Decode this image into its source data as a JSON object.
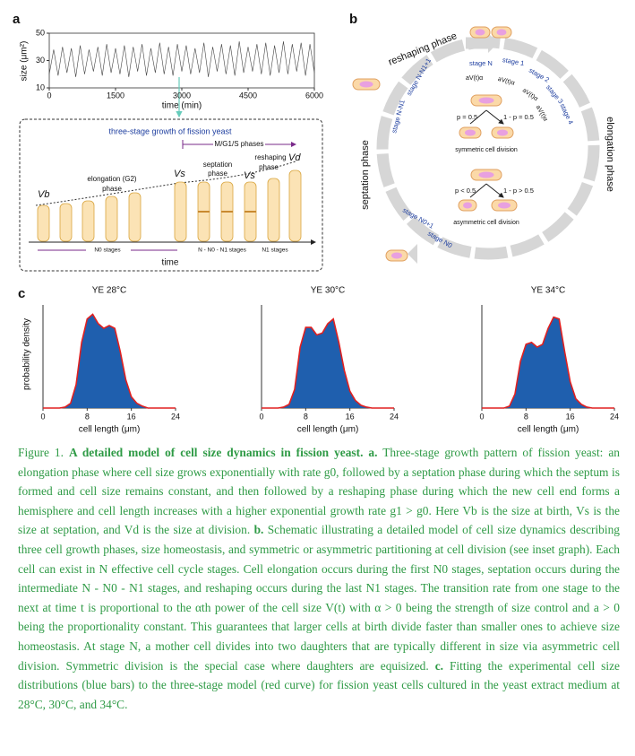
{
  "panel_a": {
    "label": "a",
    "timeseries": {
      "ylabel": "size (μm²)",
      "xlabel": "time (min)",
      "xlim": [
        0,
        6000
      ],
      "ylim": [
        10,
        50
      ],
      "xticks": [
        0,
        1500,
        3000,
        4500,
        6000
      ],
      "yticks": [
        10,
        30,
        50
      ],
      "x": [
        0,
        100,
        200,
        300,
        400,
        500,
        600,
        700,
        800,
        900,
        1000,
        1100,
        1200,
        1300,
        1400,
        1500,
        1600,
        1700,
        1800,
        1900,
        2000,
        2100,
        2200,
        2300,
        2400,
        2500,
        2600,
        2700,
        2800,
        2900,
        3000,
        3100,
        3200,
        3300,
        3400,
        3500,
        3600,
        3700,
        3800,
        3900,
        4000,
        4100,
        4200,
        4300,
        4400,
        4500,
        4600,
        4700,
        4800,
        4900,
        5000,
        5100,
        5200,
        5300,
        5400,
        5500,
        5600,
        5700,
        5800,
        5900,
        6000
      ],
      "values": [
        20,
        38,
        19,
        40,
        21,
        39,
        18,
        41,
        20,
        38,
        22,
        40,
        19,
        42,
        21,
        39,
        20,
        41,
        18,
        40,
        22,
        42,
        19,
        39,
        21,
        43,
        20,
        40,
        19,
        42,
        22,
        41,
        20,
        39,
        21,
        43,
        18,
        40,
        22,
        42,
        20,
        41,
        19,
        44,
        21,
        40,
        22,
        42,
        20,
        43,
        19,
        41,
        21,
        44,
        20,
        42,
        22,
        43,
        19,
        42,
        21
      ]
    },
    "diagram": {
      "title": "three-stage growth of fission yeast",
      "mg1s": "M/G1/S phases",
      "vb": "Vb",
      "elong1": "elongation (G2)",
      "elong2": "phase",
      "vs1": "Vs",
      "sept1": "septation",
      "sept2": "phase",
      "vs2": "Vs",
      "resh1": "reshaping",
      "vd": "Vd",
      "resh2": "phase",
      "n0": "N0 stages",
      "nmid": "N - N0 - N1 stages",
      "n1": "N1 stages",
      "time": "time"
    }
  },
  "panel_b": {
    "label": "b",
    "reshaping": "reshaping phase",
    "elongation": "elongation phase",
    "septation": "septation phase",
    "stageN": "stage N",
    "stage1": "stage 1",
    "stage2": "stage 2",
    "stage3": "stage 3",
    "stage4": "stage 4",
    "rates": [
      "aV(t)α",
      "aV(t)α",
      "aV(t)α",
      "aV(t)α"
    ],
    "stageNN1p": "stage N-N1+1",
    "stageNN1": "stage N-N1",
    "stageN0p": "stage N0+1",
    "stageN0": "stage N0",
    "p_sym": "p = 0.5",
    "q_sym": "1 - p = 0.5",
    "sym": "symmetric cell division",
    "p_asym": "p < 0.5",
    "q_asym": "1 - p > 0.5",
    "asym": "asymmetric cell division"
  },
  "panel_c": {
    "label": "c",
    "ylabel": "probability density",
    "xlabel": "cell length (μm)",
    "xlim": [
      0,
      24
    ],
    "ylim": [
      0,
      1.1
    ],
    "xticks": [
      0,
      8,
      16,
      24
    ],
    "x": [
      0,
      1,
      2,
      3,
      4,
      5,
      6,
      7,
      8,
      9,
      10,
      11,
      12,
      13,
      14,
      15,
      16,
      17,
      18,
      19,
      20,
      21,
      22,
      23,
      24
    ],
    "plots": [
      {
        "title": "YE 28°C",
        "values": [
          0,
          0,
          0,
          0,
          0.01,
          0.05,
          0.25,
          0.7,
          0.95,
          1.0,
          0.9,
          0.85,
          0.88,
          0.85,
          0.6,
          0.3,
          0.12,
          0.05,
          0.02,
          0,
          0,
          0,
          0,
          0,
          0
        ]
      },
      {
        "title": "YE 30°C",
        "values": [
          0,
          0,
          0,
          0,
          0.01,
          0.04,
          0.2,
          0.65,
          0.86,
          0.86,
          0.78,
          0.8,
          0.9,
          0.95,
          0.7,
          0.4,
          0.18,
          0.08,
          0.03,
          0.01,
          0,
          0,
          0,
          0,
          0
        ]
      },
      {
        "title": "YE 34°C",
        "values": [
          0,
          0,
          0,
          0,
          0,
          0.02,
          0.15,
          0.5,
          0.68,
          0.7,
          0.65,
          0.68,
          0.85,
          0.97,
          0.95,
          0.6,
          0.28,
          0.1,
          0.04,
          0.01,
          0,
          0,
          0,
          0,
          0
        ]
      }
    ]
  },
  "caption": {
    "label": "Figure 1.",
    "title": "A detailed model of cell size dynamics in fission yeast.",
    "a_label": "a.",
    "a_text": "Three-stage growth pattern of fission yeast: an elongation phase where cell size grows exponentially with rate g0, followed by a septation phase during which the septum is formed and cell size remains constant, and then followed by a reshaping phase during which the new cell end forms a hemisphere and cell length increases with a higher exponential growth rate g1 > g0. Here Vb is the size at birth, Vs is the size at septation, and Vd is the size at division.",
    "b_label": "b.",
    "b_text": "Schematic illustrating a detailed model of cell size dynamics describing three cell growth phases, size homeostasis, and symmetric or asymmetric partitioning at cell division (see inset graph). Each cell can exist in N effective cell cycle stages. Cell elongation occurs during the first N0 stages, septation occurs during the intermediate N - N0 - N1 stages, and reshaping occurs during the last N1 stages. The transition rate from one stage to the next at time t is proportional to the αth power of the cell size V(t) with α > 0 being the strength of size control and a > 0 being the proportionality constant. This guarantees that larger cells at birth divide faster than smaller ones to achieve size homeostasis. At stage N, a mother cell divides into two daughters that are typically different in size via asymmetric cell division. Symmetric division is the special case where daughters are equisized.",
    "c_label": "c.",
    "c_text": "Fitting the experimental cell size distributions (blue bars) to the three-stage model (red curve) for fission yeast cells cultured in the yeast extract medium at 28°C, 30°C, and 34°C."
  }
}
